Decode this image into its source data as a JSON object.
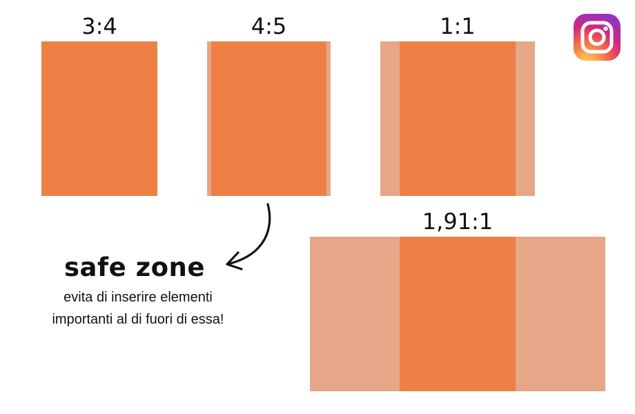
{
  "colors": {
    "safe_zone": "#ee8046",
    "outside_zone": "#e5a788",
    "text": "#111111"
  },
  "formats": [
    {
      "label": "3:4"
    },
    {
      "label": "4:5"
    },
    {
      "label": "1:1"
    },
    {
      "label": "1,91:1"
    }
  ],
  "annotation": {
    "title": "safe zone",
    "line1": "evita di inserire elementi",
    "line2": "importanti al di fuori di essa!"
  },
  "icons": {
    "logo": "instagram-icon",
    "pointer": "curved-arrow-icon"
  }
}
